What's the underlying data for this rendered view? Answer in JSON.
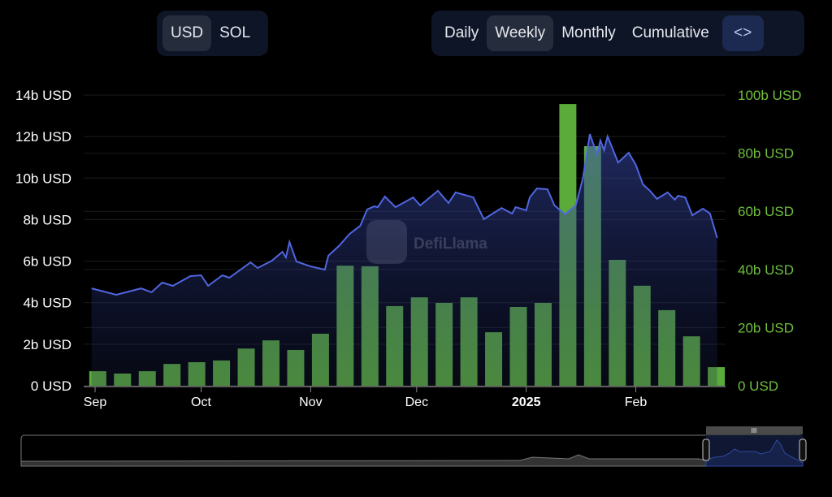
{
  "currency_toggle": {
    "options": [
      "USD",
      "SOL"
    ],
    "selected": "USD"
  },
  "period_toggle": {
    "options": [
      "Daily",
      "Weekly",
      "Monthly",
      "Cumulative"
    ],
    "selected": "Weekly",
    "embed_icon": "code-brackets-icon",
    "embed_label": "<>"
  },
  "watermark": "DefiLlama",
  "colors": {
    "line": "#5066e0",
    "bars": "#5aab3a",
    "right_axis_text": "#6fbf3d",
    "left_axis_text": "#ffffff"
  },
  "chart_data": {
    "type": "bar+line",
    "title": "",
    "x_ticks": [
      {
        "date": "2024-09-01",
        "label": "Sep"
      },
      {
        "date": "2024-10-01",
        "label": "Oct"
      },
      {
        "date": "2024-11-01",
        "label": "Nov"
      },
      {
        "date": "2024-12-01",
        "label": "Dec"
      },
      {
        "date": "2025-01-01",
        "label": "2025",
        "bold": true
      },
      {
        "date": "2025-02-01",
        "label": "Feb"
      }
    ],
    "left_axis": {
      "unit": "b USD",
      "range": [
        0,
        14
      ],
      "ticks": [
        "0 USD",
        "2b USD",
        "4b USD",
        "6b USD",
        "8b USD",
        "10b USD",
        "12b USD",
        "14b USD"
      ]
    },
    "right_axis": {
      "unit": "b USD",
      "range": [
        0,
        100
      ],
      "ticks": [
        "0 USD",
        "20b USD",
        "40b USD",
        "60b USD",
        "80b USD",
        "100b USD"
      ]
    },
    "grid": true,
    "bar_series": {
      "axis": "right",
      "dates": [
        "2024-09-02",
        "2024-09-09",
        "2024-09-16",
        "2024-09-23",
        "2024-09-30",
        "2024-10-07",
        "2024-10-14",
        "2024-10-21",
        "2024-10-28",
        "2024-11-04",
        "2024-11-11",
        "2024-11-18",
        "2024-11-25",
        "2024-12-02",
        "2024-12-09",
        "2024-12-16",
        "2024-12-23",
        "2024-12-30",
        "2025-01-06",
        "2025-01-13",
        "2025-01-20",
        "2025-01-27",
        "2025-02-03",
        "2025-02-10",
        "2025-02-17",
        "2025-02-24"
      ],
      "values": [
        5.0,
        4.2,
        5.0,
        7.5,
        8.1,
        8.7,
        12.8,
        15.6,
        12.3,
        17.9,
        41.3,
        41.1,
        27.4,
        30.4,
        28.5,
        30.4,
        18.4,
        27.1,
        28.5,
        96.9,
        82.4,
        43.3,
        34.4,
        26.0,
        17.0,
        6.4
      ]
    },
    "line_series": {
      "axis": "left",
      "points": [
        [
          "2024-08-31",
          4.69
        ],
        [
          "2024-09-07",
          4.38
        ],
        [
          "2024-09-14",
          4.69
        ],
        [
          "2024-09-17",
          4.5
        ],
        [
          "2024-09-20",
          4.97
        ],
        [
          "2024-09-23",
          4.81
        ],
        [
          "2024-09-28",
          5.28
        ],
        [
          "2024-10-01",
          5.32
        ],
        [
          "2024-10-03",
          4.81
        ],
        [
          "2024-10-07",
          5.32
        ],
        [
          "2024-10-09",
          5.2
        ],
        [
          "2024-10-15",
          5.94
        ],
        [
          "2024-10-17",
          5.67
        ],
        [
          "2024-10-21",
          6.02
        ],
        [
          "2024-10-24",
          6.45
        ],
        [
          "2024-10-25",
          6.18
        ],
        [
          "2024-10-26",
          6.92
        ],
        [
          "2024-10-28",
          5.98
        ],
        [
          "2024-11-01",
          5.75
        ],
        [
          "2024-11-05",
          5.59
        ],
        [
          "2024-11-06",
          6.26
        ],
        [
          "2024-11-09",
          6.73
        ],
        [
          "2024-11-12",
          7.31
        ],
        [
          "2024-11-15",
          7.7
        ],
        [
          "2024-11-17",
          8.49
        ],
        [
          "2024-11-19",
          8.64
        ],
        [
          "2024-11-20",
          8.6
        ],
        [
          "2024-11-22",
          9.11
        ],
        [
          "2024-11-25",
          8.6
        ],
        [
          "2024-11-30",
          9.07
        ],
        [
          "2024-12-02",
          8.68
        ],
        [
          "2024-12-07",
          9.39
        ],
        [
          "2024-12-10",
          8.8
        ],
        [
          "2024-12-12",
          9.31
        ],
        [
          "2024-12-17",
          9.07
        ],
        [
          "2024-12-20",
          8.02
        ],
        [
          "2024-12-25",
          8.56
        ],
        [
          "2024-12-28",
          8.29
        ],
        [
          "2024-12-29",
          8.6
        ],
        [
          "2025-01-01",
          8.45
        ],
        [
          "2025-01-02",
          9.07
        ],
        [
          "2025-01-04",
          9.5
        ],
        [
          "2025-01-07",
          9.46
        ],
        [
          "2025-01-09",
          8.68
        ],
        [
          "2025-01-12",
          8.25
        ],
        [
          "2025-01-15",
          8.68
        ],
        [
          "2025-01-17",
          9.97
        ],
        [
          "2025-01-19",
          12.12
        ],
        [
          "2025-01-21",
          11.15
        ],
        [
          "2025-01-22",
          11.81
        ],
        [
          "2025-01-23",
          11.34
        ],
        [
          "2025-01-24",
          12.01
        ],
        [
          "2025-01-27",
          10.75
        ],
        [
          "2025-01-30",
          11.22
        ],
        [
          "2025-02-01",
          10.64
        ],
        [
          "2025-02-03",
          9.7
        ],
        [
          "2025-02-05",
          9.39
        ],
        [
          "2025-02-07",
          9.0
        ],
        [
          "2025-02-10",
          9.31
        ],
        [
          "2025-02-12",
          8.96
        ],
        [
          "2025-02-13",
          9.15
        ],
        [
          "2025-02-15",
          9.07
        ],
        [
          "2025-02-17",
          8.21
        ],
        [
          "2025-02-20",
          8.53
        ],
        [
          "2025-02-22",
          8.29
        ],
        [
          "2025-02-24",
          7.12
        ]
      ]
    },
    "navigator": {
      "selection": "most recent period",
      "handle_label": "III"
    }
  }
}
